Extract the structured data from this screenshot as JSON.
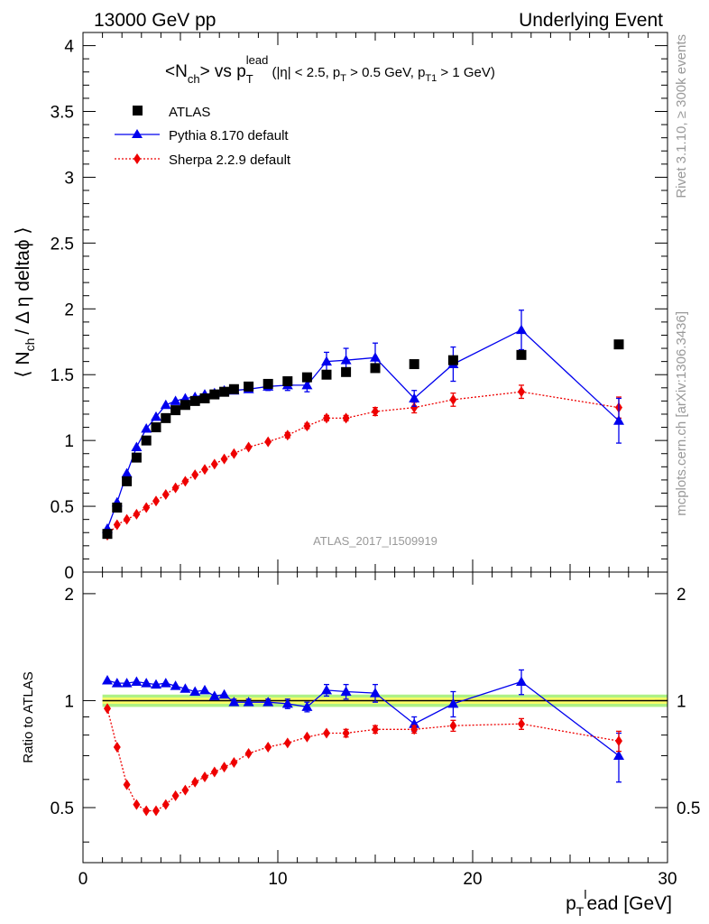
{
  "header": {
    "left": "13000 GeV pp",
    "right": "Underlying Event"
  },
  "title": {
    "main_prefix": "<N",
    "main_sub1": "ch",
    "main_mid": "> vs p",
    "main_sub2": "T",
    "main_sup2": "lead",
    "cuts_1": " (|η| < 2.5, p",
    "cuts_sub1": "T",
    "cuts_2": " > 0.5 GeV, p",
    "cuts_sub2": "T1",
    "cuts_3": " > 1 GeV)"
  },
  "side_labels": {
    "rivet": "Rivet 3.1.10, ≥ 300k events",
    "mcplots": "mcplots.cern.ch [arXiv:1306.3436]"
  },
  "watermark": "ATLAS_2017_I1509919",
  "axes": {
    "ylabel_main": "⟨ N",
    "ylabel_main_sub": "ch",
    "ylabel_main_rest": "/ Δ η deltaϕ ⟩",
    "ylabel_ratio": "Ratio to ATLAS",
    "xlabel_p": "p",
    "xlabel_sub": "T",
    "xlabel_sup": "l",
    "xlabel_rest": "ead [GeV]"
  },
  "colors": {
    "atlas": "#000000",
    "pythia": "#0000ee",
    "sherpa": "#ee0000",
    "band_inner": "#ffff66",
    "band_outer": "#99ee66"
  },
  "chart_data": [
    {
      "type": "scatter",
      "panel": "main",
      "xlim": [
        0,
        30
      ],
      "ylim": [
        0,
        4.1
      ],
      "yticks": [
        0,
        0.5,
        1,
        1.5,
        2,
        2.5,
        3,
        3.5,
        4
      ],
      "ytick_labels": [
        "0",
        "0.5",
        "1",
        "1.5",
        "2",
        "2.5",
        "3",
        "3.5",
        "4"
      ],
      "legend_position": "top-left",
      "series": [
        {
          "name": "ATLAS",
          "style": "squares",
          "x": [
            1.25,
            1.75,
            2.25,
            2.75,
            3.25,
            3.75,
            4.25,
            4.75,
            5.25,
            5.75,
            6.25,
            6.75,
            7.25,
            7.75,
            8.5,
            9.5,
            10.5,
            11.5,
            12.5,
            13.5,
            15.0,
            17.0,
            19.0,
            22.5,
            27.5
          ],
          "y": [
            0.29,
            0.49,
            0.69,
            0.87,
            1.0,
            1.1,
            1.17,
            1.23,
            1.27,
            1.3,
            1.32,
            1.35,
            1.37,
            1.39,
            1.41,
            1.43,
            1.45,
            1.48,
            1.5,
            1.52,
            1.55,
            1.58,
            1.61,
            1.65,
            1.73
          ]
        },
        {
          "name": "Pythia 8.170 default",
          "style": "line-triangles",
          "x": [
            1.25,
            1.75,
            2.25,
            2.75,
            3.25,
            3.75,
            4.25,
            4.75,
            5.25,
            5.75,
            6.25,
            6.75,
            7.25,
            7.75,
            8.5,
            9.5,
            10.5,
            11.5,
            12.5,
            13.5,
            15.0,
            17.0,
            19.0,
            22.5,
            27.5
          ],
          "y": [
            0.33,
            0.53,
            0.75,
            0.95,
            1.09,
            1.18,
            1.27,
            1.3,
            1.32,
            1.33,
            1.35,
            1.36,
            1.38,
            1.38,
            1.39,
            1.41,
            1.42,
            1.42,
            1.6,
            1.61,
            1.63,
            1.32,
            1.58,
            1.84,
            1.15
          ],
          "err": [
            0.01,
            0.01,
            0.01,
            0.01,
            0.01,
            0.01,
            0.01,
            0.01,
            0.01,
            0.01,
            0.01,
            0.01,
            0.01,
            0.02,
            0.02,
            0.03,
            0.04,
            0.05,
            0.07,
            0.09,
            0.11,
            0.06,
            0.13,
            0.15,
            0.17
          ]
        },
        {
          "name": "Sherpa 2.2.9 default",
          "style": "dotted-diamonds",
          "x": [
            1.25,
            1.75,
            2.25,
            2.75,
            3.25,
            3.75,
            4.25,
            4.75,
            5.25,
            5.75,
            6.25,
            6.75,
            7.25,
            7.75,
            8.5,
            9.5,
            10.5,
            11.5,
            12.5,
            13.5,
            15.0,
            17.0,
            19.0,
            22.5,
            27.5
          ],
          "y": [
            0.28,
            0.36,
            0.4,
            0.44,
            0.49,
            0.54,
            0.59,
            0.64,
            0.69,
            0.74,
            0.78,
            0.82,
            0.86,
            0.9,
            0.95,
            0.99,
            1.04,
            1.11,
            1.17,
            1.17,
            1.22,
            1.25,
            1.31,
            1.37,
            1.25
          ],
          "err": [
            0.01,
            0.01,
            0.01,
            0.01,
            0.01,
            0.01,
            0.01,
            0.01,
            0.01,
            0.01,
            0.01,
            0.01,
            0.01,
            0.01,
            0.01,
            0.01,
            0.02,
            0.02,
            0.02,
            0.02,
            0.03,
            0.04,
            0.05,
            0.05,
            0.08
          ]
        }
      ]
    },
    {
      "type": "scatter",
      "panel": "ratio",
      "xlim": [
        0,
        30
      ],
      "ylim": [
        0.35,
        2.3
      ],
      "xticks": [
        0,
        10,
        20,
        30
      ],
      "xtick_labels": [
        "0",
        "10",
        "20",
        "30"
      ],
      "yticks": [
        0.5,
        1,
        2
      ],
      "ytick_labels": [
        "0.5",
        "1",
        "2"
      ],
      "series": [
        {
          "name": "Pythia 8.170 default",
          "style": "line-triangles",
          "x": [
            1.25,
            1.75,
            2.25,
            2.75,
            3.25,
            3.75,
            4.25,
            4.75,
            5.25,
            5.75,
            6.25,
            6.75,
            7.25,
            7.75,
            8.5,
            9.5,
            10.5,
            11.5,
            12.5,
            13.5,
            15.0,
            17.0,
            19.0,
            22.5,
            27.5
          ],
          "y": [
            1.14,
            1.12,
            1.12,
            1.13,
            1.12,
            1.11,
            1.12,
            1.1,
            1.08,
            1.06,
            1.07,
            1.03,
            1.04,
            0.99,
            0.99,
            0.99,
            0.98,
            0.96,
            1.07,
            1.06,
            1.05,
            0.86,
            0.98,
            1.13,
            0.7
          ],
          "err": [
            0.01,
            0.01,
            0.01,
            0.01,
            0.01,
            0.01,
            0.01,
            0.01,
            0.01,
            0.01,
            0.01,
            0.01,
            0.01,
            0.02,
            0.02,
            0.02,
            0.03,
            0.03,
            0.04,
            0.05,
            0.06,
            0.04,
            0.08,
            0.09,
            0.11
          ]
        },
        {
          "name": "Sherpa 2.2.9 default",
          "style": "dotted-diamonds",
          "x": [
            1.25,
            1.75,
            2.25,
            2.75,
            3.25,
            3.75,
            4.25,
            4.75,
            5.25,
            5.75,
            6.25,
            6.75,
            7.25,
            7.75,
            8.5,
            9.5,
            10.5,
            11.5,
            12.5,
            13.5,
            15.0,
            17.0,
            19.0,
            22.5,
            27.5
          ],
          "y": [
            0.95,
            0.74,
            0.58,
            0.51,
            0.49,
            0.49,
            0.51,
            0.54,
            0.56,
            0.59,
            0.61,
            0.63,
            0.65,
            0.67,
            0.71,
            0.74,
            0.76,
            0.79,
            0.81,
            0.81,
            0.83,
            0.83,
            0.85,
            0.86,
            0.77
          ],
          "err": [
            0.01,
            0.01,
            0.01,
            0.01,
            0.01,
            0.01,
            0.01,
            0.01,
            0.01,
            0.01,
            0.01,
            0.01,
            0.01,
            0.01,
            0.01,
            0.01,
            0.01,
            0.01,
            0.01,
            0.02,
            0.02,
            0.02,
            0.03,
            0.03,
            0.05
          ]
        }
      ]
    }
  ]
}
